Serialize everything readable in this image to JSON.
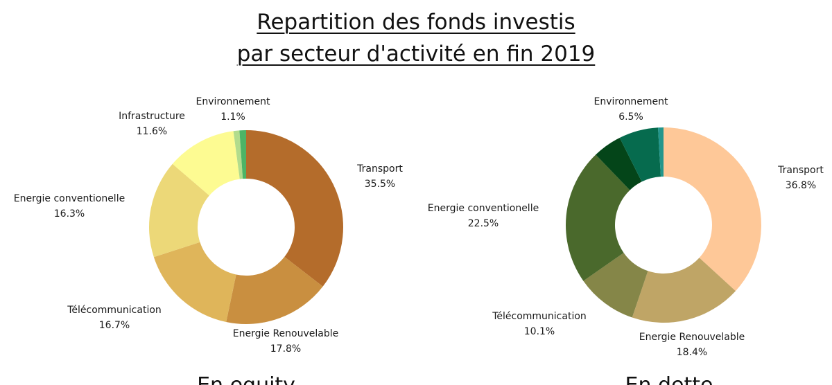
{
  "title": {
    "line1": "Repartition des fonds investis ",
    "line2": "par secteur d'activité en fin 2019"
  },
  "chart_data": [
    {
      "type": "pie",
      "donut": true,
      "subtitle": "En equity",
      "title": "",
      "slices": [
        {
          "label": "Transport",
          "value": 35.5,
          "display": "35.5%",
          "color": "#b46c2b"
        },
        {
          "label": "Energie Renouvelable",
          "value": 17.8,
          "display": "17.8%",
          "color": "#c98f40"
        },
        {
          "label": "Télécommunication",
          "value": 16.7,
          "display": "16.7%",
          "color": "#dfb55a"
        },
        {
          "label": "Energie conventionelle",
          "value": 16.3,
          "display": "16.3%",
          "color": "#ecd878"
        },
        {
          "label": "Infrastructure",
          "value": 11.6,
          "display": "11.6%",
          "color": "#fdfb92"
        },
        {
          "label": "",
          "value": 1.0,
          "display": "",
          "color": "#b2dc8c"
        },
        {
          "label": "Environnement",
          "value": 1.1,
          "display": "1.1%",
          "color": "#4db466"
        }
      ]
    },
    {
      "type": "pie",
      "donut": true,
      "subtitle": "En dette",
      "title": "",
      "slices": [
        {
          "label": "Transport",
          "value": 36.8,
          "display": "36.8%",
          "color": "#fec898"
        },
        {
          "label": "Energie Renouvelable",
          "value": 18.4,
          "display": "18.4%",
          "color": "#bfa566"
        },
        {
          "label": "Télécommunication",
          "value": 10.1,
          "display": "10.1%",
          "color": "#858648"
        },
        {
          "label": "Energie conventionelle",
          "value": 22.5,
          "display": "22.5%",
          "color": "#4a692c"
        },
        {
          "label": "",
          "value": 4.8,
          "display": "",
          "color": "#044519"
        },
        {
          "label": "Environnement",
          "value": 6.5,
          "display": "6.5%",
          "color": "#066b4e"
        },
        {
          "label": "",
          "value": 0.9,
          "display": "",
          "color": "#22968c"
        }
      ]
    }
  ]
}
